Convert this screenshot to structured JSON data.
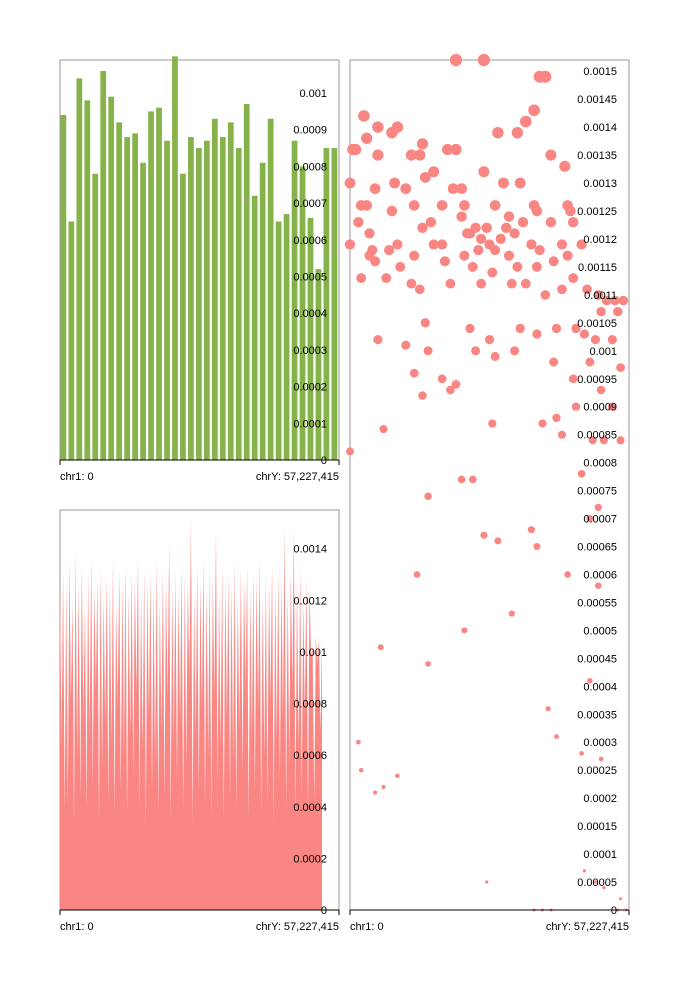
{
  "chart_data": [
    {
      "type": "bar",
      "x_labels": {
        "start": "chr1: 0",
        "end": "chrY: 57,227,415"
      },
      "ylim": [
        0,
        0.00109
      ],
      "y_ticks": [
        {
          "value": 0,
          "label": "0"
        },
        {
          "value": 0.0001,
          "label": "0.0001"
        },
        {
          "value": 0.0002,
          "label": "0.0002"
        },
        {
          "value": 0.0003,
          "label": "0.0003"
        },
        {
          "value": 0.0004,
          "label": "0.0004"
        },
        {
          "value": 0.0005,
          "label": "0.0005"
        },
        {
          "value": 0.0006,
          "label": "0.0006"
        },
        {
          "value": 0.0007,
          "label": "0.0007"
        },
        {
          "value": 0.0008,
          "label": "0.0008"
        },
        {
          "value": 0.0009,
          "label": "0.0009"
        },
        {
          "value": 0.001,
          "label": "0.001"
        }
      ],
      "color": "#86b24a",
      "values": [
        0.00094,
        0.00065,
        0.00104,
        0.00098,
        0.00078,
        0.00106,
        0.00099,
        0.00092,
        0.00088,
        0.00089,
        0.00081,
        0.00095,
        0.00096,
        0.00087,
        0.0011,
        0.00078,
        0.00088,
        0.00085,
        0.00087,
        0.00093,
        0.00088,
        0.00092,
        0.00085,
        0.00097,
        0.00072,
        0.00081,
        0.00093,
        0.00065,
        0.00067,
        0.00087,
        0.0008,
        0.00066,
        0.00052,
        0.00085,
        0.00085
      ]
    },
    {
      "type": "area",
      "x_labels": {
        "start": "chr1: 0",
        "end": "chrY: 57,227,415"
      },
      "ylim": [
        0,
        0.00155
      ],
      "y_ticks": [
        {
          "value": 0,
          "label": "0"
        },
        {
          "value": 0.0002,
          "label": "0.0002"
        },
        {
          "value": 0.0004,
          "label": "0.0004"
        },
        {
          "value": 0.0006,
          "label": "0.0006"
        },
        {
          "value": 0.0008,
          "label": "0.0008"
        },
        {
          "value": 0.001,
          "label": "0.001"
        },
        {
          "value": 0.0012,
          "label": "0.0012"
        },
        {
          "value": 0.0014,
          "label": "0.0014"
        }
      ],
      "color": "#f98683",
      "values": [
        0.00125,
        0.00132,
        0.00128,
        0.00135,
        0.0012,
        0.00138,
        0.00127,
        0.00134,
        0.00118,
        0.00131,
        0.00136,
        0.00124,
        0.00129,
        0.00133,
        0.00121,
        0.0013,
        0.00126,
        0.00137,
        0.00119,
        0.00132,
        0.00128,
        0.00134,
        0.00123,
        0.00131,
        0.00129,
        0.00136,
        0.00122,
        0.00133,
        0.00127,
        0.0013,
        0.00125,
        0.00135,
        0.0012,
        0.00132,
        0.00128,
        0.00143,
        0.00126,
        0.00131,
        0.00124,
        0.00134,
        0.0013,
        0.00127,
        0.00151,
        0.00122,
        0.00133,
        0.00128,
        0.00136,
        0.00125,
        0.00131,
        0.00129,
        0.00147,
        0.00123,
        0.00134,
        0.00127,
        0.0013,
        0.00126,
        0.00135,
        0.00121,
        0.00132,
        0.00128,
        0.00133,
        0.00124,
        0.00131,
        0.00129,
        0.00136,
        0.00122,
        0.0013,
        0.00127,
        0.00134,
        0.00125,
        0.00132,
        0.00128,
        0.00149,
        0.00123,
        0.00131,
        0.00147,
        0.00126,
        0.00133,
        0.0012,
        0.00129,
        0.00124,
        0.00102,
        0.00106,
        0.00105
      ],
      "dips": [
        0.00062,
        0.00038,
        0.00041,
        0.00081,
        0.00035,
        0.00058,
        0.00044,
        0.00073,
        0.00039,
        0.00066,
        0.00048,
        0.00085,
        0.00034,
        0.00055,
        0.00071,
        0.00042,
        0.00063,
        0.00037,
        0.00079,
        0.00046,
        0.00059,
        0.00036,
        0.00068,
        0.00052,
        0.00084,
        0.0004,
        0.00061,
        0.00033,
        0.00075,
        0.00047,
        0.00057,
        0.00038,
        0.00069,
        0.00043,
        0.00082,
        0.00036,
        0.00064,
        0.0005,
        0.00072,
        0.00039,
        0.00056,
        0.00088,
        0.00034,
        0.00067,
        0.00045,
        0.00077,
        0.00041,
        0.0006,
        0.00037,
        0.00083,
        0.00049,
        0.00063,
        0.00035,
        0.00074,
        0.00044,
        0.00058,
        0.0004,
        0.0007,
        0.00053,
        0.00086,
        0.00036,
        0.00065,
        0.00046,
        0.00078,
        0.00038,
        0.00059,
        0.00042,
        0.00081,
        0.00034,
        0.00066,
        0.0005,
        0.00073,
        0.0004,
        0.00057,
        0.00087,
        0.00037,
        0.00062,
        0.00045,
        0.00076,
        0.00039,
        0.00098,
        0.00043,
        0.00095,
        0.00069
      ]
    },
    {
      "type": "scatter",
      "x_labels": {
        "start": "chr1: 0",
        "end": "chrY: 57,227,415"
      },
      "ylim": [
        0,
        0.00152
      ],
      "y_ticks": [
        {
          "value": 0,
          "label": "0"
        },
        {
          "value": 5e-05,
          "label": "0.00005"
        },
        {
          "value": 0.0001,
          "label": "0.0001"
        },
        {
          "value": 0.00015,
          "label": "0.00015"
        },
        {
          "value": 0.0002,
          "label": "0.0002"
        },
        {
          "value": 0.00025,
          "label": "0.00025"
        },
        {
          "value": 0.0003,
          "label": "0.0003"
        },
        {
          "value": 0.00035,
          "label": "0.00035"
        },
        {
          "value": 0.0004,
          "label": "0.0004"
        },
        {
          "value": 0.00045,
          "label": "0.00045"
        },
        {
          "value": 0.0005,
          "label": "0.0005"
        },
        {
          "value": 0.00055,
          "label": "0.00055"
        },
        {
          "value": 0.0006,
          "label": "0.0006"
        },
        {
          "value": 0.00065,
          "label": "0.00065"
        },
        {
          "value": 0.0007,
          "label": "0.0007"
        },
        {
          "value": 0.00075,
          "label": "0.00075"
        },
        {
          "value": 0.0008,
          "label": "0.0008"
        },
        {
          "value": 0.00085,
          "label": "0.00085"
        },
        {
          "value": 0.0009,
          "label": "0.0009"
        },
        {
          "value": 0.00095,
          "label": "0.00095"
        },
        {
          "value": 0.001,
          "label": "0.001"
        },
        {
          "value": 0.00105,
          "label": "0.00105"
        },
        {
          "value": 0.0011,
          "label": "0.0011"
        },
        {
          "value": 0.00115,
          "label": "0.00115"
        },
        {
          "value": 0.0012,
          "label": "0.0012"
        },
        {
          "value": 0.00125,
          "label": "0.00125"
        },
        {
          "value": 0.0013,
          "label": "0.0013"
        },
        {
          "value": 0.00135,
          "label": "0.00135"
        },
        {
          "value": 0.0014,
          "label": "0.0014"
        },
        {
          "value": 0.00145,
          "label": "0.00145"
        },
        {
          "value": 0.0015,
          "label": "0.0015"
        }
      ],
      "color": "#f98683",
      "x_domain": [
        0,
        1
      ],
      "points": [
        [
          0.38,
          0.00152
        ],
        [
          0.48,
          0.00152
        ],
        [
          0.68,
          0.00149
        ],
        [
          0.7,
          0.00149
        ],
        [
          0.05,
          0.00142
        ],
        [
          0.1,
          0.0014
        ],
        [
          0.06,
          0.00138
        ],
        [
          0.17,
          0.0014
        ],
        [
          0.15,
          0.00139
        ],
        [
          0.66,
          0.00143
        ],
        [
          0.63,
          0.00141
        ],
        [
          0.02,
          0.00136
        ],
        [
          0.01,
          0.00136
        ],
        [
          0.26,
          0.00137
        ],
        [
          0.38,
          0.00136
        ],
        [
          0.35,
          0.00136
        ],
        [
          0.22,
          0.00135
        ],
        [
          0.25,
          0.00135
        ],
        [
          0.1,
          0.00135
        ],
        [
          0.53,
          0.00139
        ],
        [
          0.6,
          0.00139
        ],
        [
          0.72,
          0.00135
        ],
        [
          0.77,
          0.00133
        ],
        [
          0.3,
          0.00132
        ],
        [
          0.48,
          0.00132
        ],
        [
          0.55,
          0.0013
        ],
        [
          0.0,
          0.0013
        ],
        [
          0.09,
          0.00129
        ],
        [
          0.16,
          0.0013
        ],
        [
          0.2,
          0.00129
        ],
        [
          0.27,
          0.00131
        ],
        [
          0.37,
          0.00129
        ],
        [
          0.4,
          0.00129
        ],
        [
          0.61,
          0.0013
        ],
        [
          0.04,
          0.00126
        ],
        [
          0.06,
          0.00126
        ],
        [
          0.15,
          0.00125
        ],
        [
          0.23,
          0.00126
        ],
        [
          0.33,
          0.00126
        ],
        [
          0.41,
          0.00126
        ],
        [
          0.52,
          0.00126
        ],
        [
          0.57,
          0.00124
        ],
        [
          0.66,
          0.00126
        ],
        [
          0.67,
          0.00125
        ],
        [
          0.78,
          0.00126
        ],
        [
          0.79,
          0.00125
        ],
        [
          0.03,
          0.00123
        ],
        [
          0.07,
          0.00121
        ],
        [
          0.26,
          0.00122
        ],
        [
          0.29,
          0.00123
        ],
        [
          0.4,
          0.00124
        ],
        [
          0.45,
          0.00122
        ],
        [
          0.49,
          0.00122
        ],
        [
          0.56,
          0.00122
        ],
        [
          0.62,
          0.00123
        ],
        [
          0.72,
          0.00123
        ],
        [
          0.8,
          0.00123
        ],
        [
          0.0,
          0.00119
        ],
        [
          0.08,
          0.00118
        ],
        [
          0.17,
          0.00119
        ],
        [
          0.3,
          0.00119
        ],
        [
          0.42,
          0.00121
        ],
        [
          0.43,
          0.00121
        ],
        [
          0.47,
          0.0012
        ],
        [
          0.5,
          0.00119
        ],
        [
          0.54,
          0.0012
        ],
        [
          0.59,
          0.00121
        ],
        [
          0.65,
          0.00119
        ],
        [
          0.76,
          0.00119
        ],
        [
          0.83,
          0.00119
        ],
        [
          0.07,
          0.00117
        ],
        [
          0.14,
          0.00118
        ],
        [
          0.23,
          0.00117
        ],
        [
          0.33,
          0.00119
        ],
        [
          0.41,
          0.00117
        ],
        [
          0.46,
          0.00118
        ],
        [
          0.52,
          0.00118
        ],
        [
          0.57,
          0.00117
        ],
        [
          0.68,
          0.00118
        ],
        [
          0.78,
          0.00117
        ],
        [
          0.09,
          0.00116
        ],
        [
          0.18,
          0.00115
        ],
        [
          0.34,
          0.00116
        ],
        [
          0.44,
          0.00115
        ],
        [
          0.51,
          0.00114
        ],
        [
          0.6,
          0.00115
        ],
        [
          0.67,
          0.00115
        ],
        [
          0.73,
          0.00116
        ],
        [
          0.8,
          0.00113
        ],
        [
          0.04,
          0.00113
        ],
        [
          0.13,
          0.00113
        ],
        [
          0.22,
          0.00112
        ],
        [
          0.25,
          0.00111
        ],
        [
          0.36,
          0.00112
        ],
        [
          0.47,
          0.00112
        ],
        [
          0.58,
          0.00112
        ],
        [
          0.63,
          0.00112
        ],
        [
          0.7,
          0.0011
        ],
        [
          0.76,
          0.00111
        ],
        [
          0.85,
          0.00111
        ],
        [
          0.89,
          0.0011
        ],
        [
          0.92,
          0.00109
        ],
        [
          0.95,
          0.00109
        ],
        [
          0.98,
          0.00109
        ],
        [
          0.9,
          0.00107
        ],
        [
          0.96,
          0.00107
        ],
        [
          0.81,
          0.00104
        ],
        [
          0.27,
          0.00105
        ],
        [
          0.43,
          0.00104
        ],
        [
          0.5,
          0.00102
        ],
        [
          0.61,
          0.00104
        ],
        [
          0.67,
          0.00103
        ],
        [
          0.74,
          0.00104
        ],
        [
          0.84,
          0.00103
        ],
        [
          0.88,
          0.00102
        ],
        [
          0.94,
          0.00102
        ],
        [
          0.1,
          0.00102
        ],
        [
          0.2,
          0.00101
        ],
        [
          0.28,
          0.001
        ],
        [
          0.45,
          0.001
        ],
        [
          0.52,
          0.00099
        ],
        [
          0.59,
          0.001
        ],
        [
          0.73,
          0.00098
        ],
        [
          0.86,
          0.00098
        ],
        [
          0.97,
          0.00097
        ],
        [
          0.23,
          0.00096
        ],
        [
          0.33,
          0.00095
        ],
        [
          0.8,
          0.00095
        ],
        [
          0.9,
          0.00093
        ],
        [
          0.36,
          0.00093
        ],
        [
          0.26,
          0.00092
        ],
        [
          0.38,
          0.00094
        ],
        [
          0.94,
          0.0009
        ],
        [
          0.81,
          0.0009
        ],
        [
          0.74,
          0.00088
        ],
        [
          0.51,
          0.00087
        ],
        [
          0.69,
          0.00087
        ],
        [
          0.12,
          0.00086
        ],
        [
          0.76,
          0.00085
        ],
        [
          0.87,
          0.00084
        ],
        [
          0.91,
          0.00084
        ],
        [
          0.97,
          0.00084
        ],
        [
          0.0,
          0.00082
        ],
        [
          0.83,
          0.00078
        ],
        [
          0.44,
          0.00077
        ],
        [
          0.4,
          0.00077
        ],
        [
          0.28,
          0.00074
        ],
        [
          0.89,
          0.00072
        ],
        [
          0.86,
          0.0007
        ],
        [
          0.65,
          0.00068
        ],
        [
          0.48,
          0.00067
        ],
        [
          0.53,
          0.00066
        ],
        [
          0.67,
          0.00065
        ],
        [
          0.24,
          0.0006
        ],
        [
          0.78,
          0.0006
        ],
        [
          0.89,
          0.00058
        ],
        [
          0.58,
          0.00053
        ],
        [
          0.11,
          0.00047
        ],
        [
          0.41,
          0.0005
        ],
        [
          0.28,
          0.00044
        ],
        [
          0.86,
          0.00041
        ],
        [
          0.71,
          0.00036
        ],
        [
          0.74,
          0.00031
        ],
        [
          0.9,
          0.00027
        ],
        [
          0.03,
          0.0003
        ],
        [
          0.04,
          0.00025
        ],
        [
          0.09,
          0.00021
        ],
        [
          0.17,
          0.00024
        ],
        [
          0.12,
          0.00022
        ],
        [
          0.83,
          0.00028
        ],
        [
          0.49,
          5e-05
        ],
        [
          0.84,
          7e-05
        ],
        [
          0.88,
          5e-05
        ],
        [
          0.91,
          4e-05
        ],
        [
          0.97,
          2e-05
        ],
        [
          0.66,
          0.0
        ],
        [
          0.69,
          0.0
        ],
        [
          0.72,
          0.0
        ],
        [
          0.96,
          0.0
        ],
        [
          0.99,
          0.0
        ]
      ]
    }
  ]
}
